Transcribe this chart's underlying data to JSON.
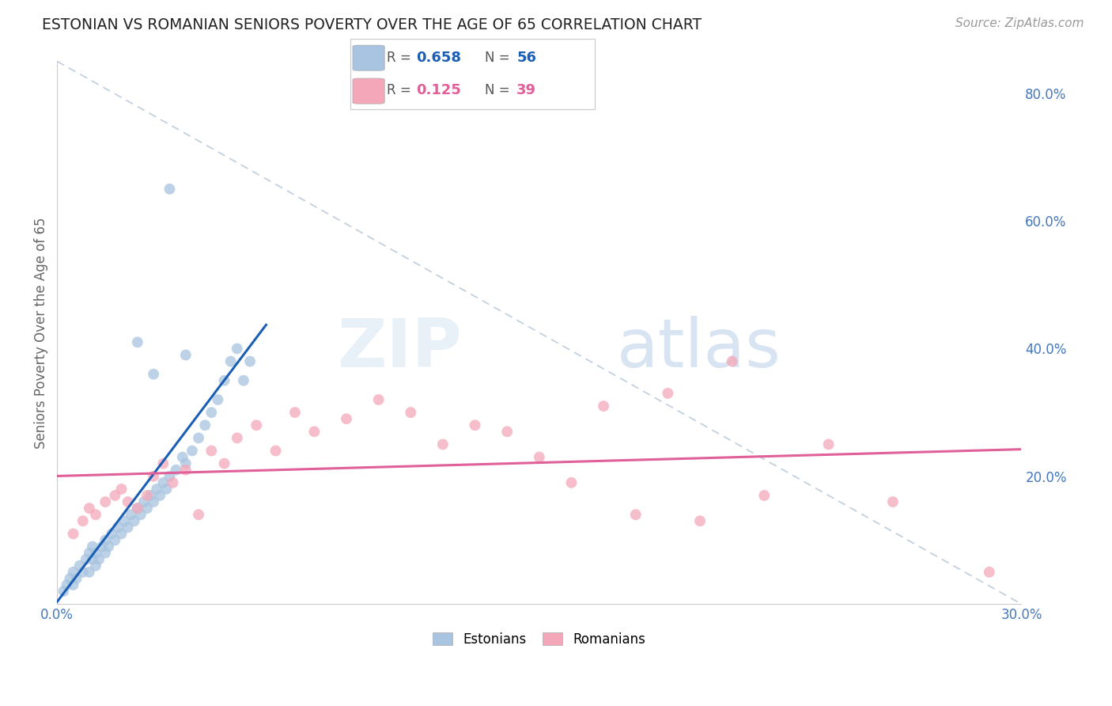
{
  "title": "ESTONIAN VS ROMANIAN SENIORS POVERTY OVER THE AGE OF 65 CORRELATION CHART",
  "source": "Source: ZipAtlas.com",
  "ylabel": "Seniors Poverty Over the Age of 65",
  "xlim": [
    0.0,
    0.3
  ],
  "ylim": [
    0.0,
    0.85
  ],
  "xticks": [
    0.0,
    0.05,
    0.1,
    0.15,
    0.2,
    0.25,
    0.3
  ],
  "xticklabels": [
    "0.0%",
    "",
    "",
    "",
    "",
    "",
    "30.0%"
  ],
  "yticks_right": [
    0.2,
    0.4,
    0.6,
    0.8
  ],
  "ytick_labels_right": [
    "20.0%",
    "40.0%",
    "60.0%",
    "80.0%"
  ],
  "estonian_color": "#a8c4e0",
  "romanian_color": "#f4a7b9",
  "estonian_line_color": "#1a5fb4",
  "romanian_line_color": "#e0609a",
  "ref_line_color": "#b8c8d8",
  "legend_R_estonian": "0.658",
  "legend_N_estonian": "56",
  "legend_R_romanian": "0.125",
  "legend_N_romanian": "39",
  "watermark_zip": "ZIP",
  "watermark_atlas": "atlas",
  "title_color": "#222222",
  "axis_label_color": "#666666",
  "tick_color": "#4477bb",
  "background_color": "#ffffff",
  "grid_color": "#c8d8ea",
  "estonian_x": [
    0.002,
    0.003,
    0.004,
    0.005,
    0.005,
    0.006,
    0.007,
    0.008,
    0.009,
    0.01,
    0.01,
    0.011,
    0.011,
    0.012,
    0.012,
    0.013,
    0.014,
    0.015,
    0.015,
    0.016,
    0.017,
    0.018,
    0.019,
    0.02,
    0.021,
    0.022,
    0.023,
    0.024,
    0.025,
    0.026,
    0.027,
    0.028,
    0.029,
    0.03,
    0.031,
    0.032,
    0.033,
    0.034,
    0.035,
    0.037,
    0.039,
    0.04,
    0.042,
    0.044,
    0.046,
    0.048,
    0.05,
    0.052,
    0.054,
    0.056,
    0.058,
    0.06,
    0.025,
    0.03,
    0.035,
    0.04
  ],
  "estonian_y": [
    0.02,
    0.03,
    0.04,
    0.03,
    0.05,
    0.04,
    0.06,
    0.05,
    0.07,
    0.05,
    0.08,
    0.07,
    0.09,
    0.06,
    0.08,
    0.07,
    0.09,
    0.08,
    0.1,
    0.09,
    0.11,
    0.1,
    0.12,
    0.11,
    0.13,
    0.12,
    0.14,
    0.13,
    0.15,
    0.14,
    0.16,
    0.15,
    0.17,
    0.16,
    0.18,
    0.17,
    0.19,
    0.18,
    0.2,
    0.21,
    0.23,
    0.22,
    0.24,
    0.26,
    0.28,
    0.3,
    0.32,
    0.35,
    0.38,
    0.4,
    0.35,
    0.38,
    0.41,
    0.36,
    0.65,
    0.39
  ],
  "romanian_x": [
    0.005,
    0.008,
    0.01,
    0.012,
    0.015,
    0.018,
    0.02,
    0.022,
    0.025,
    0.028,
    0.03,
    0.033,
    0.036,
    0.04,
    0.044,
    0.048,
    0.052,
    0.056,
    0.062,
    0.068,
    0.074,
    0.08,
    0.09,
    0.1,
    0.11,
    0.12,
    0.13,
    0.14,
    0.15,
    0.16,
    0.17,
    0.18,
    0.19,
    0.2,
    0.21,
    0.22,
    0.24,
    0.26,
    0.29
  ],
  "romanian_y": [
    0.11,
    0.13,
    0.15,
    0.14,
    0.16,
    0.17,
    0.18,
    0.16,
    0.15,
    0.17,
    0.2,
    0.22,
    0.19,
    0.21,
    0.14,
    0.24,
    0.22,
    0.26,
    0.28,
    0.24,
    0.3,
    0.27,
    0.29,
    0.32,
    0.3,
    0.25,
    0.28,
    0.27,
    0.23,
    0.19,
    0.31,
    0.14,
    0.33,
    0.13,
    0.38,
    0.17,
    0.25,
    0.16,
    0.05
  ]
}
